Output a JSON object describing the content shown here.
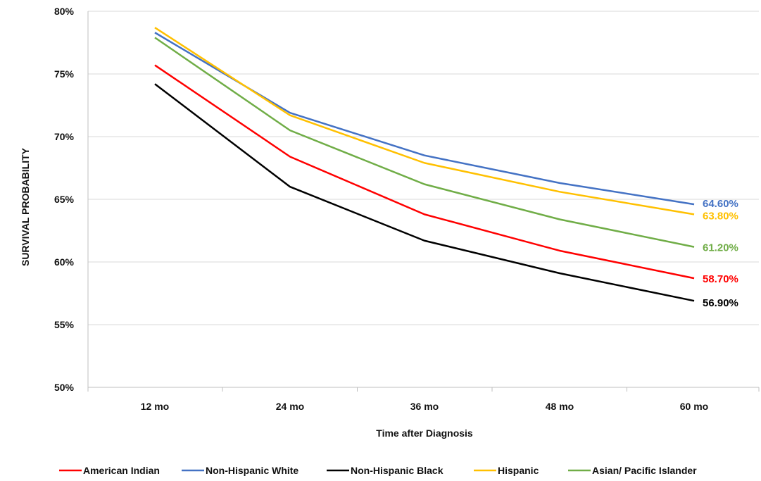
{
  "chart_data": {
    "type": "line",
    "title": "",
    "xlabel": "Time after Diagnosis",
    "ylabel": "SURVIVAL PROBABILITY",
    "categories": [
      "12 mo",
      "24 mo",
      "36 mo",
      "48 mo",
      "60 mo"
    ],
    "ylim": [
      50,
      80
    ],
    "yticks": [
      50,
      55,
      60,
      65,
      70,
      75,
      80
    ],
    "ytick_labels": [
      "50%",
      "55%",
      "60%",
      "65%",
      "70%",
      "75%",
      "80%"
    ],
    "grid": true,
    "legend_position": "bottom",
    "series": [
      {
        "name": "American Indian",
        "color": "#ff0000",
        "values": [
          75.7,
          68.4,
          63.8,
          60.9,
          58.7
        ],
        "end_label": "58.70%"
      },
      {
        "name": "Non-Hispanic White",
        "color": "#4472c4",
        "values": [
          78.3,
          71.9,
          68.5,
          66.3,
          64.6
        ],
        "end_label": "64.60%"
      },
      {
        "name": "Non-Hispanic Black",
        "color": "#000000",
        "values": [
          74.2,
          66.0,
          61.7,
          59.1,
          56.9
        ],
        "end_label": "56.90%"
      },
      {
        "name": "Hispanic",
        "color": "#ffc000",
        "values": [
          78.7,
          71.7,
          67.9,
          65.6,
          63.8
        ],
        "end_label": "63.80%"
      },
      {
        "name": "Asian/ Pacific Islander",
        "color": "#70ad47",
        "values": [
          77.9,
          70.5,
          66.2,
          63.4,
          61.2
        ],
        "end_label": "61.20%"
      }
    ]
  }
}
